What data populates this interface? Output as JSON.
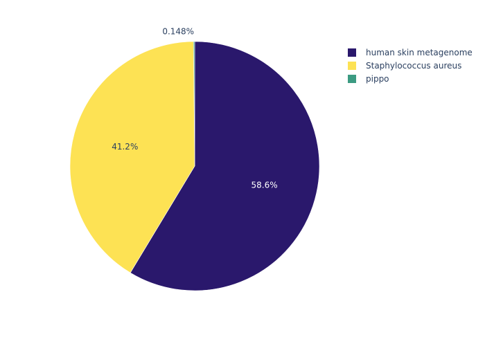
{
  "chart_data": {
    "type": "pie",
    "title": "",
    "labels": [
      "human skin metagenome",
      "Staphylococcus aureus",
      "pippo"
    ],
    "values": [
      58.6,
      41.2,
      0.148
    ],
    "percent_labels": [
      "58.6%",
      "41.2%",
      "0.148%"
    ],
    "colors": [
      "#2a186c",
      "#fde254",
      "#3c9b82"
    ],
    "label_colors": [
      "#ffffff",
      "#2a3f5f",
      "#2a3f5f"
    ],
    "start_angle_deg": 0,
    "direction": "clockwise",
    "legend": {
      "position": "top-right"
    }
  }
}
